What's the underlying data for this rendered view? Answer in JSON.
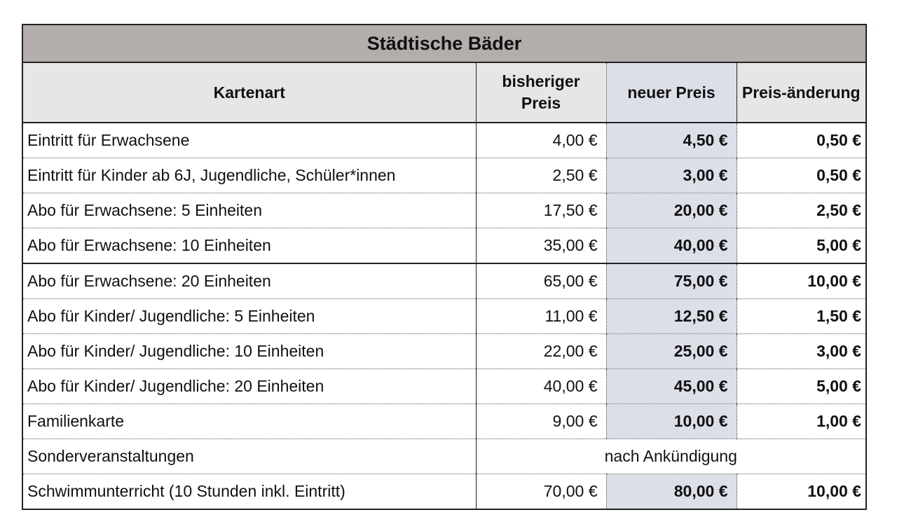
{
  "title": "Städtische Bäder",
  "headers": {
    "kartenart": "Kartenart",
    "bisheriger_preis": "bisheriger Preis",
    "neuer_preis": "neuer Preis",
    "preisaenderung": "Preis-änderung"
  },
  "rows": [
    {
      "name": "Eintritt für Erwachsene",
      "old": "4,00 €",
      "new": "4,50 €",
      "diff": "0,50 €"
    },
    {
      "name": "Eintritt für Kinder ab 6J, Jugendliche, Schüler*innen",
      "old": "2,50 €",
      "new": "3,00 €",
      "diff": "0,50 €"
    },
    {
      "name": "Abo für Erwachsene: 5 Einheiten",
      "old": "17,50 €",
      "new": "20,00 €",
      "diff": "2,50 €"
    },
    {
      "name": "Abo für Erwachsene: 10 Einheiten",
      "old": "35,00 €",
      "new": "40,00 €",
      "diff": "5,00 €"
    },
    {
      "name": "Abo für Erwachsene: 20 Einheiten",
      "old": "65,00 €",
      "new": "75,00 €",
      "diff": "10,00 €"
    },
    {
      "name": "Abo für Kinder/ Jugendliche: 5 Einheiten",
      "old": "11,00 €",
      "new": "12,50 €",
      "diff": "1,50 €"
    },
    {
      "name": "Abo für Kinder/ Jugendliche: 10 Einheiten",
      "old": "22,00 €",
      "new": "25,00 €",
      "diff": "3,00 €"
    },
    {
      "name": "Abo für Kinder/ Jugendliche: 20 Einheiten",
      "old": "40,00 €",
      "new": "45,00 €",
      "diff": "5,00 €"
    },
    {
      "name": "Familienkarte",
      "old": "9,00 €",
      "new": "10,00 €",
      "diff": "1,00 €"
    },
    {
      "name": "Sonderveranstaltungen",
      "note": "nach Ankündigung"
    },
    {
      "name": "Schwimmunterricht (10 Stunden inkl. Eintritt)",
      "old": "70,00 €",
      "new": "80,00 €",
      "diff": "10,00 €"
    }
  ],
  "colors": {
    "title_background": "#b3adab",
    "header_background": "#e6e6e6",
    "new_price_background": "#dcdfe7"
  }
}
